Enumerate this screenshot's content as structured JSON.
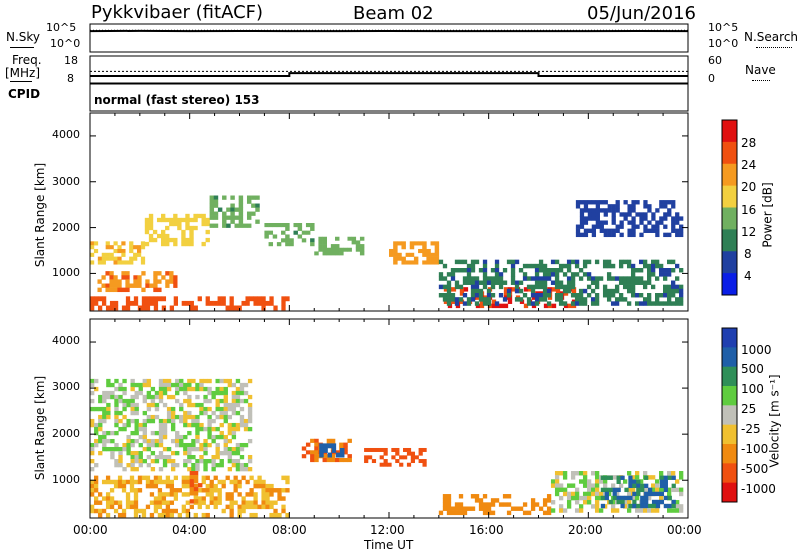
{
  "header": {
    "station": "Pykkvibaer (fitACF)",
    "beam": "Beam 02",
    "date": "05/Jun/2016"
  },
  "top_panels": {
    "nsky_label": "N.Sky",
    "nsearch_label": "N.Search",
    "power_ticks": [
      "10^5",
      "10^0"
    ],
    "freq_label": "Freq.",
    "freq_unit": "[MHz]",
    "freq_ticks": [
      "18",
      "8"
    ],
    "nave_label": "Nave",
    "nave_ticks": [
      "60",
      "0"
    ],
    "cpid_label": "CPID",
    "cpid_value": "normal (fast stereo) 153"
  },
  "axes": {
    "ylabel": "Slant Range [km]",
    "xlabel": "Time UT",
    "yticks": [
      "4000",
      "3000",
      "2000",
      "1000"
    ],
    "xticks": [
      "00:00",
      "04:00",
      "08:00",
      "12:00",
      "16:00",
      "20:00",
      "00:00"
    ]
  },
  "colorbars": {
    "power": {
      "label": "Power [dB]",
      "ticks": [
        "28",
        "24",
        "20",
        "16",
        "12",
        "8",
        "4"
      ],
      "colors": [
        "#e01010",
        "#f05010",
        "#f59a20",
        "#f2d040",
        "#70b060",
        "#2f7f55",
        "#2040a0",
        "#0a1ee6"
      ]
    },
    "velocity": {
      "label": "Velocity [m s⁻¹]",
      "ticks": [
        "1000",
        "500",
        "100",
        "25",
        "-25",
        "-100",
        "-500",
        "-1000"
      ],
      "colors": [
        "#1f3fb0",
        "#1f5fa8",
        "#2f8f58",
        "#5fcc3f",
        "#c0c0b8",
        "#f0c030",
        "#f08a10",
        "#f05010",
        "#e01010"
      ]
    }
  },
  "chart_data": [
    {
      "type": "line",
      "title": "N.Sky / N.Search",
      "x_units": "hours UT",
      "yscale": "log",
      "ylim": [
        1,
        100000
      ],
      "series": [
        {
          "name": "N.Sky",
          "x": [
            0,
            2,
            4,
            6,
            8,
            10,
            12,
            14,
            16,
            18,
            20,
            22,
            24
          ],
          "y": [
            20000,
            22000,
            20000,
            21000,
            20000,
            20000,
            21000,
            20000,
            20000,
            20000,
            20000,
            21000,
            20000
          ]
        }
      ]
    },
    {
      "type": "line",
      "title": "Freq. / Nave",
      "x_units": "hours UT",
      "ylim": [
        8,
        18
      ],
      "series": [
        {
          "name": "Freq.",
          "x": [
            0,
            8,
            8,
            18,
            18,
            24
          ],
          "y": [
            10.2,
            10.2,
            11.4,
            11.4,
            10.2,
            10.2
          ]
        }
      ]
    },
    {
      "type": "heatmap",
      "title": "Power [dB]",
      "xlabel": "Time UT",
      "ylabel": "Slant Range [km]",
      "xlim": [
        0,
        24
      ],
      "ylim": [
        180,
        4500
      ],
      "clim": [
        0,
        30
      ],
      "patches": [
        {
          "t0": 0.0,
          "t1": 2.2,
          "r0": 1200,
          "r1": 1700,
          "p": 18
        },
        {
          "t0": 2.2,
          "t1": 4.8,
          "r0": 1600,
          "r1": 2300,
          "p": 16
        },
        {
          "t0": 4.8,
          "t1": 6.8,
          "r0": 2000,
          "r1": 2700,
          "p": 12
        },
        {
          "t0": 0.3,
          "t1": 3.5,
          "r0": 600,
          "r1": 1050,
          "p": 22
        },
        {
          "t0": 0.0,
          "t1": 8.0,
          "r0": 200,
          "r1": 500,
          "p": 24
        },
        {
          "t0": 7.0,
          "t1": 9.0,
          "r0": 1600,
          "r1": 2100,
          "p": 12
        },
        {
          "t0": 9.0,
          "t1": 11.0,
          "r0": 1400,
          "r1": 1800,
          "p": 14
        },
        {
          "t0": 12.0,
          "t1": 14.0,
          "r0": 1200,
          "r1": 1700,
          "p": 20
        },
        {
          "t0": 14.2,
          "t1": 19.5,
          "r0": 250,
          "r1": 700,
          "p": 26
        },
        {
          "t0": 14.0,
          "t1": 23.8,
          "r0": 300,
          "r1": 1300,
          "p": 8
        },
        {
          "t0": 19.5,
          "t1": 23.8,
          "r0": 1800,
          "r1": 2600,
          "p": 6
        }
      ]
    },
    {
      "type": "heatmap",
      "title": "Velocity [m s⁻¹]",
      "xlabel": "Time UT",
      "ylabel": "Slant Range [km]",
      "xlim": [
        0,
        24
      ],
      "ylim": [
        180,
        4500
      ],
      "clim": [
        -1000,
        1000
      ],
      "patches": [
        {
          "t0": 0.0,
          "t1": 6.5,
          "r0": 1200,
          "r1": 3200,
          "v": 0
        },
        {
          "t0": 0.0,
          "t1": 8.0,
          "r0": 200,
          "r1": 1100,
          "v": -100
        },
        {
          "t0": 4.0,
          "t1": 4.5,
          "r0": 500,
          "r1": 1200,
          "v": -500
        },
        {
          "t0": 8.5,
          "t1": 10.5,
          "r0": 1400,
          "r1": 1900,
          "v": -500
        },
        {
          "t0": 9.2,
          "t1": 10.2,
          "r0": 1500,
          "r1": 1800,
          "v": 700
        },
        {
          "t0": 11.0,
          "t1": 13.5,
          "r0": 1300,
          "r1": 1700,
          "v": -600
        },
        {
          "t0": 14.0,
          "t1": 18.5,
          "r0": 250,
          "r1": 700,
          "v": -200
        },
        {
          "t0": 18.5,
          "t1": 23.8,
          "r0": 300,
          "r1": 1200,
          "v": 0
        },
        {
          "t0": 20.5,
          "t1": 23.5,
          "r0": 400,
          "r1": 1100,
          "v": 500
        }
      ]
    }
  ]
}
